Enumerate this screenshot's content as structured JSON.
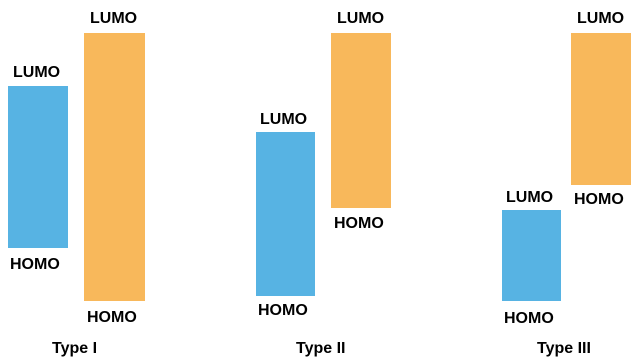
{
  "colors": {
    "donor": "#57b3e3",
    "acceptor": "#f8b85b"
  },
  "panels": [
    {
      "type_label": "Type I",
      "donor": {
        "top_label": "LUMO",
        "bottom_label": "HOMO"
      },
      "acceptor": {
        "top_label": "LUMO",
        "bottom_label": "HOMO"
      }
    },
    {
      "type_label": "Type II",
      "donor": {
        "top_label": "LUMO",
        "bottom_label": "HOMO"
      },
      "acceptor": {
        "top_label": "LUMO",
        "bottom_label": "HOMO"
      }
    },
    {
      "type_label": "Type III",
      "donor": {
        "top_label": "LUMO",
        "bottom_label": "HOMO"
      },
      "acceptor": {
        "top_label": "LUMO",
        "bottom_label": "HOMO"
      }
    }
  ]
}
